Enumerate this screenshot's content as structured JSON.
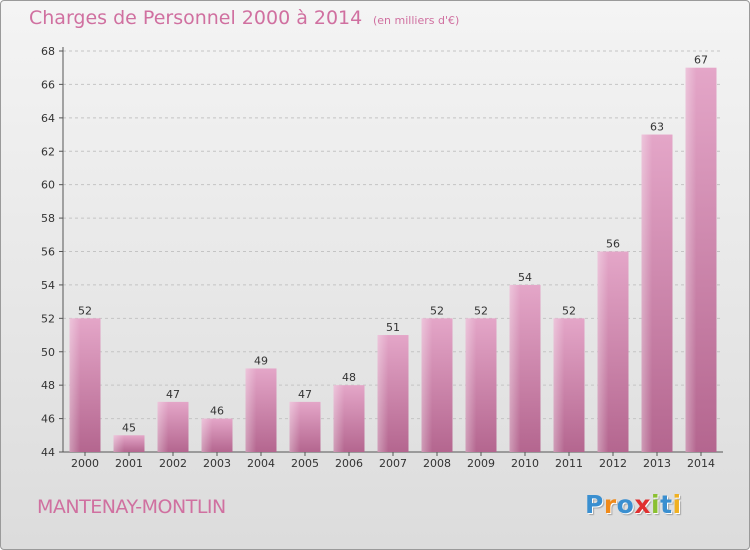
{
  "chart_data": {
    "type": "bar",
    "title": "Charges de Personnel 2000 à 2014",
    "subtitle": "(en milliers d'€)",
    "categories": [
      "2000",
      "2001",
      "2002",
      "2003",
      "2004",
      "2005",
      "2006",
      "2007",
      "2008",
      "2009",
      "2010",
      "2011",
      "2012",
      "2013",
      "2014"
    ],
    "values": [
      52,
      45,
      47,
      46,
      49,
      47,
      48,
      51,
      52,
      52,
      54,
      52,
      56,
      63,
      67
    ],
    "ylim": [
      44,
      68
    ],
    "yticks": [
      44,
      46,
      48,
      50,
      52,
      54,
      56,
      58,
      60,
      62,
      64,
      66,
      68
    ],
    "grid": true,
    "bar_color": "#c9709f"
  },
  "footer": {
    "commune": "MANTENAY-MONTLIN",
    "brand": {
      "letters": [
        {
          "char": "P",
          "color": "#3a8fd0"
        },
        {
          "char": "r",
          "color": "#f08a1a"
        },
        {
          "char": "o",
          "color": "#3a8fd0"
        },
        {
          "char": "x",
          "color": "#e03030"
        },
        {
          "char": "i",
          "color": "#8ac030"
        },
        {
          "char": "t",
          "color": "#3a8fd0"
        },
        {
          "char": "i",
          "color": "#f0b020"
        }
      ]
    }
  }
}
